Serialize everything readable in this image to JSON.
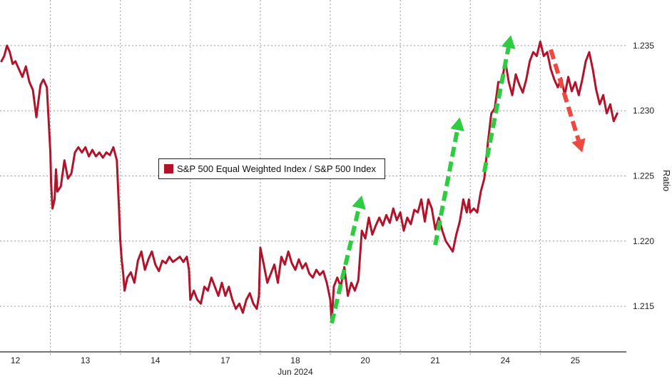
{
  "colors": {
    "series": "#b3122b",
    "grid": "#9a9a9a",
    "axis": "#222222",
    "green_arrow": "#2ecc40",
    "red_arrow": "#f0473f"
  },
  "chart_data": {
    "type": "line",
    "title": "",
    "xlabel": "",
    "xlabel_sub": "Jun 2024",
    "ylabel": "Ratio",
    "ylim": [
      1.2115,
      1.2385
    ],
    "yticks": [
      1.215,
      1.22,
      1.225,
      1.23,
      1.235
    ],
    "ytick_labels": [
      "1.215",
      "1.220",
      "1.225",
      "1.230",
      "1.235"
    ],
    "grid": true,
    "legend_placement": "center-left",
    "x_axis_type": "trading-day",
    "xtick_labels": [
      "12",
      "13",
      "14",
      "17",
      "18",
      "20",
      "21",
      "24",
      "25"
    ],
    "xtick_positions": [
      0.2,
      1.2,
      2.2,
      3.2,
      4.2,
      5.2,
      6.2,
      7.2,
      8.2
    ],
    "series": [
      {
        "name": "S&P 500 Equal Weighted Index / S&P 500 Index",
        "x": [
          0.0,
          0.04,
          0.08,
          0.12,
          0.16,
          0.2,
          0.25,
          0.3,
          0.35,
          0.4,
          0.45,
          0.5,
          0.53,
          0.56,
          0.6,
          0.65,
          0.7,
          0.71,
          0.73,
          0.76,
          0.78,
          0.8,
          0.85,
          0.9,
          0.95,
          1.0,
          1.05,
          1.1,
          1.15,
          1.2,
          1.25,
          1.3,
          1.35,
          1.4,
          1.45,
          1.5,
          1.55,
          1.6,
          1.65,
          1.68,
          1.7,
          1.72,
          1.74,
          1.76,
          1.8,
          1.85,
          1.9,
          1.95,
          2.0,
          2.05,
          2.1,
          2.15,
          2.2,
          2.25,
          2.3,
          2.35,
          2.4,
          2.45,
          2.5,
          2.55,
          2.6,
          2.65,
          2.68,
          2.7,
          2.75,
          2.8,
          2.85,
          2.9,
          2.95,
          3.0,
          3.05,
          3.1,
          3.15,
          3.2,
          3.25,
          3.3,
          3.35,
          3.4,
          3.45,
          3.5,
          3.55,
          3.6,
          3.65,
          3.68,
          3.7,
          3.75,
          3.8,
          3.85,
          3.9,
          3.95,
          4.0,
          4.05,
          4.1,
          4.15,
          4.2,
          4.25,
          4.3,
          4.35,
          4.4,
          4.45,
          4.5,
          4.55,
          4.6,
          4.65,
          4.7,
          4.72,
          4.75,
          4.8,
          4.85,
          4.9,
          4.95,
          5.0,
          5.05,
          5.1,
          5.15,
          5.2,
          5.25,
          5.3,
          5.35,
          5.4,
          5.45,
          5.5,
          5.55,
          5.6,
          5.65,
          5.7,
          5.75,
          5.8,
          5.85,
          5.9,
          5.95,
          6.0,
          6.05,
          6.1,
          6.15,
          6.2,
          6.25,
          6.3,
          6.35,
          6.4,
          6.45,
          6.5,
          6.55,
          6.58,
          6.6,
          6.62,
          6.65,
          6.68,
          6.7,
          6.75,
          6.8,
          6.85,
          6.9,
          6.95,
          7.0,
          7.05,
          7.1,
          7.15,
          7.2,
          7.25,
          7.3,
          7.35,
          7.4,
          7.45,
          7.5,
          7.55,
          7.6,
          7.65,
          7.7,
          7.75,
          7.8,
          7.85,
          7.9,
          7.95,
          8.0,
          8.05,
          8.1,
          8.15,
          8.2,
          8.25,
          8.3,
          8.35,
          8.4,
          8.45,
          8.5,
          8.55,
          8.6,
          8.65,
          8.7,
          8.75,
          8.8
        ],
        "values": [
          1.2338,
          1.2342,
          1.235,
          1.2345,
          1.2336,
          1.2338,
          1.2332,
          1.2326,
          1.2334,
          1.2322,
          1.2316,
          1.2295,
          1.2308,
          1.232,
          1.2324,
          1.2318,
          1.2268,
          1.2245,
          1.2225,
          1.2232,
          1.2255,
          1.2238,
          1.2242,
          1.2262,
          1.2248,
          1.2252,
          1.2268,
          1.2272,
          1.2268,
          1.2272,
          1.2265,
          1.227,
          1.2265,
          1.2268,
          1.2264,
          1.2268,
          1.2266,
          1.2272,
          1.2262,
          1.2225,
          1.22,
          1.2185,
          1.2175,
          1.2162,
          1.2172,
          1.2176,
          1.2168,
          1.2185,
          1.2192,
          1.2178,
          1.2186,
          1.2192,
          1.2182,
          1.2177,
          1.2185,
          1.2183,
          1.2188,
          1.2184,
          1.2186,
          1.2188,
          1.2184,
          1.2188,
          1.2178,
          1.2155,
          1.2162,
          1.2155,
          1.2152,
          1.2165,
          1.2162,
          1.2172,
          1.2165,
          1.2158,
          1.2168,
          1.2158,
          1.2165,
          1.2155,
          1.2148,
          1.2152,
          1.2145,
          1.2155,
          1.216,
          1.2152,
          1.2148,
          1.2158,
          1.2195,
          1.2182,
          1.2168,
          1.2175,
          1.2182,
          1.2168,
          1.2188,
          1.2182,
          1.2192,
          1.2183,
          1.2178,
          1.2186,
          1.2179,
          1.2183,
          1.2175,
          1.2172,
          1.2178,
          1.2174,
          1.2177,
          1.2168,
          1.2155,
          1.2138,
          1.2165,
          1.2172,
          1.2165,
          1.218,
          1.2158,
          1.2168,
          1.2162,
          1.217,
          1.2208,
          1.2202,
          1.2218,
          1.2205,
          1.2212,
          1.2218,
          1.2212,
          1.222,
          1.2214,
          1.2225,
          1.2216,
          1.2222,
          1.2208,
          1.2218,
          1.2213,
          1.2224,
          1.2222,
          1.2232,
          1.2215,
          1.2232,
          1.2225,
          1.2209,
          1.2218,
          1.2208,
          1.22,
          1.2196,
          1.2192,
          1.2205,
          1.2215,
          1.2225,
          1.2232,
          1.2228,
          1.2222,
          1.2232,
          1.2222,
          1.2225,
          1.2222,
          1.2238,
          1.2248,
          1.2275,
          1.2298,
          1.2302,
          1.2322,
          1.2322,
          1.2338,
          1.2322,
          1.2312,
          1.2328,
          1.232,
          1.2314,
          1.2324,
          1.2338,
          1.2345,
          1.2342,
          1.2353,
          1.2342,
          1.2345,
          1.2332,
          1.2324,
          1.2318,
          1.2325,
          1.2312,
          1.2326,
          1.2315,
          1.2322,
          1.2312,
          1.2324,
          1.2338,
          1.2345,
          1.2332,
          1.2316,
          1.2305,
          1.2312,
          1.2298,
          1.2305,
          1.2292,
          1.2298
        ]
      }
    ],
    "annotations": [
      {
        "type": "arrow",
        "style": "dashed",
        "color": "green",
        "from": [
          4.72,
          1.2137
        ],
        "to": [
          5.15,
          1.2235
        ]
      },
      {
        "type": "arrow",
        "style": "dashed",
        "color": "green",
        "from": [
          6.2,
          1.2197
        ],
        "to": [
          6.55,
          1.2295
        ]
      },
      {
        "type": "arrow",
        "style": "dashed",
        "color": "green",
        "from": [
          6.9,
          1.2253
        ],
        "to": [
          7.28,
          1.2358
        ]
      },
      {
        "type": "arrow",
        "style": "dashed",
        "color": "red",
        "from": [
          7.85,
          1.2347
        ],
        "to": [
          8.3,
          1.2268
        ]
      }
    ]
  }
}
